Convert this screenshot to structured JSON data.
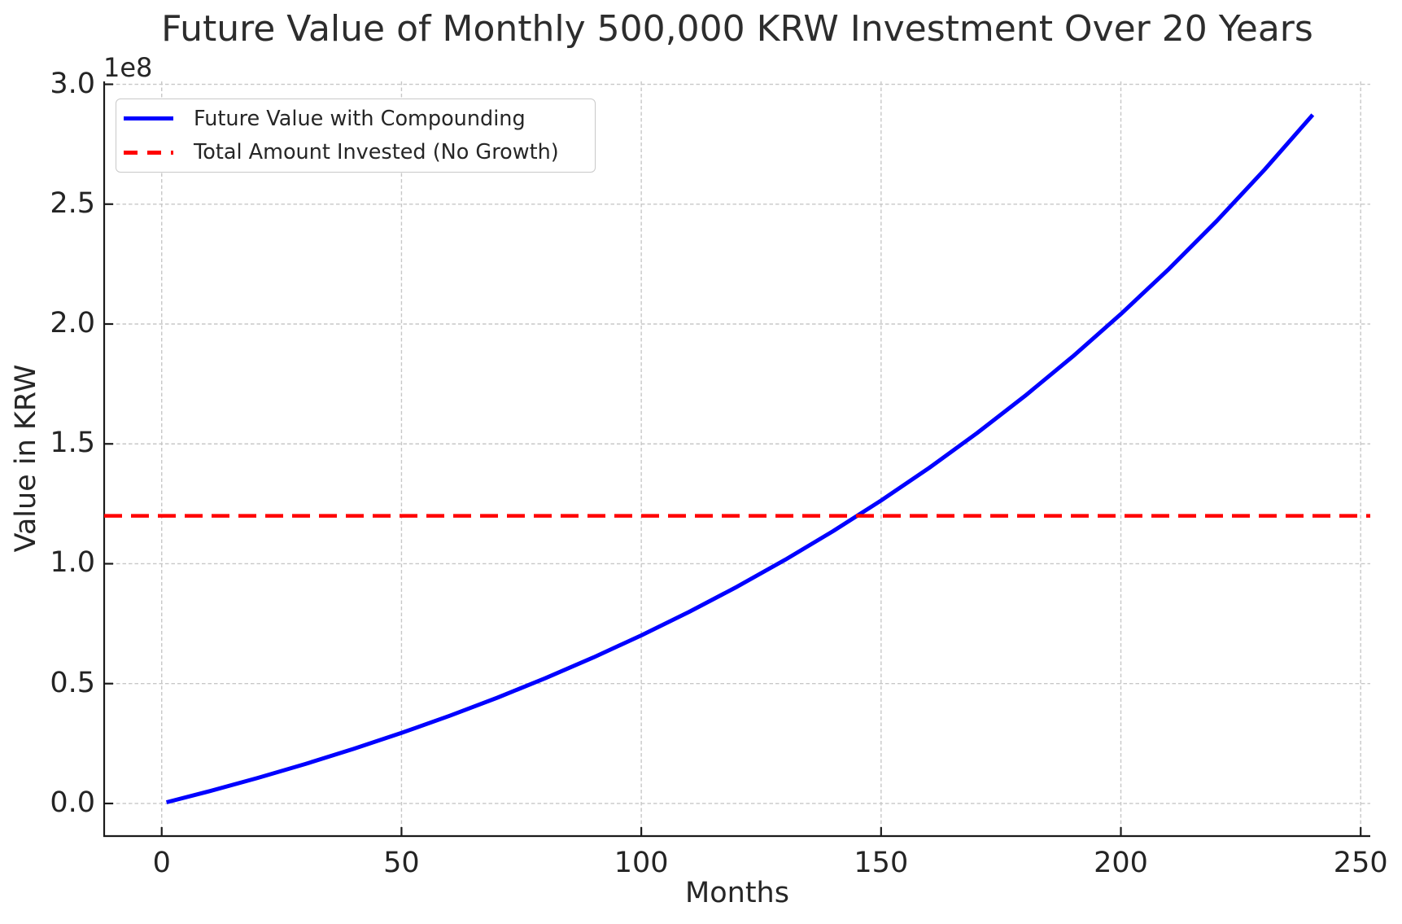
{
  "figure": {
    "background": "#ffffff",
    "text_color": "#262626",
    "spine_color": "#1b1b1b",
    "grid_color": "#c7c7c7"
  },
  "chart_data": {
    "type": "line",
    "title": "Future Value of Monthly 500,000 KRW Investment Over 20 Years",
    "xlabel": "Months",
    "ylabel": "Value in KRW",
    "y_offset_label": "1e8",
    "x_tick_values": [
      0,
      50,
      100,
      150,
      200,
      250
    ],
    "x_tick_labels": [
      "0",
      "50",
      "100",
      "150",
      "200",
      "250"
    ],
    "y_tick_values": [
      0,
      50000000,
      100000000,
      150000000,
      200000000,
      250000000,
      300000000
    ],
    "y_tick_labels": [
      "0.0",
      "0.5",
      "1.0",
      "1.5",
      "2.0",
      "2.5",
      "3.0"
    ],
    "xlim": [
      -12,
      252
    ],
    "ylim": [
      -13600000,
      301200000
    ],
    "grid": true,
    "grid_style": "dashed",
    "legend_position": "upper left",
    "series": [
      {
        "name": "Future Value with Compounding",
        "color": "#0000ff",
        "line_style": "solid",
        "line_width": 5,
        "points": [
          [
            1,
            500000
          ],
          [
            10,
            5148700
          ],
          [
            20,
            10642100
          ],
          [
            30,
            16503200
          ],
          [
            40,
            22756500
          ],
          [
            50,
            29428400
          ],
          [
            60,
            36547200
          ],
          [
            70,
            44142300
          ],
          [
            80,
            52245500
          ],
          [
            90,
            60891100
          ],
          [
            100,
            70115900
          ],
          [
            110,
            79957800
          ],
          [
            120,
            90458400
          ],
          [
            130,
            101661800
          ],
          [
            140,
            113615400
          ],
          [
            150,
            126368700
          ],
          [
            160,
            139975900
          ],
          [
            170,
            154493500
          ],
          [
            180,
            169983600
          ],
          [
            190,
            186509500
          ],
          [
            200,
            204142400
          ],
          [
            210,
            222954500
          ],
          [
            220,
            243026700
          ],
          [
            230,
            264441500
          ],
          [
            240,
            287291000
          ]
        ]
      },
      {
        "name": "Total Amount Invested (No Growth)",
        "color": "#ff0000",
        "line_style": "dashed",
        "line_width": 4.5,
        "value": 120000000,
        "points": [
          [
            -12,
            120000000
          ],
          [
            252,
            120000000
          ]
        ]
      }
    ]
  }
}
